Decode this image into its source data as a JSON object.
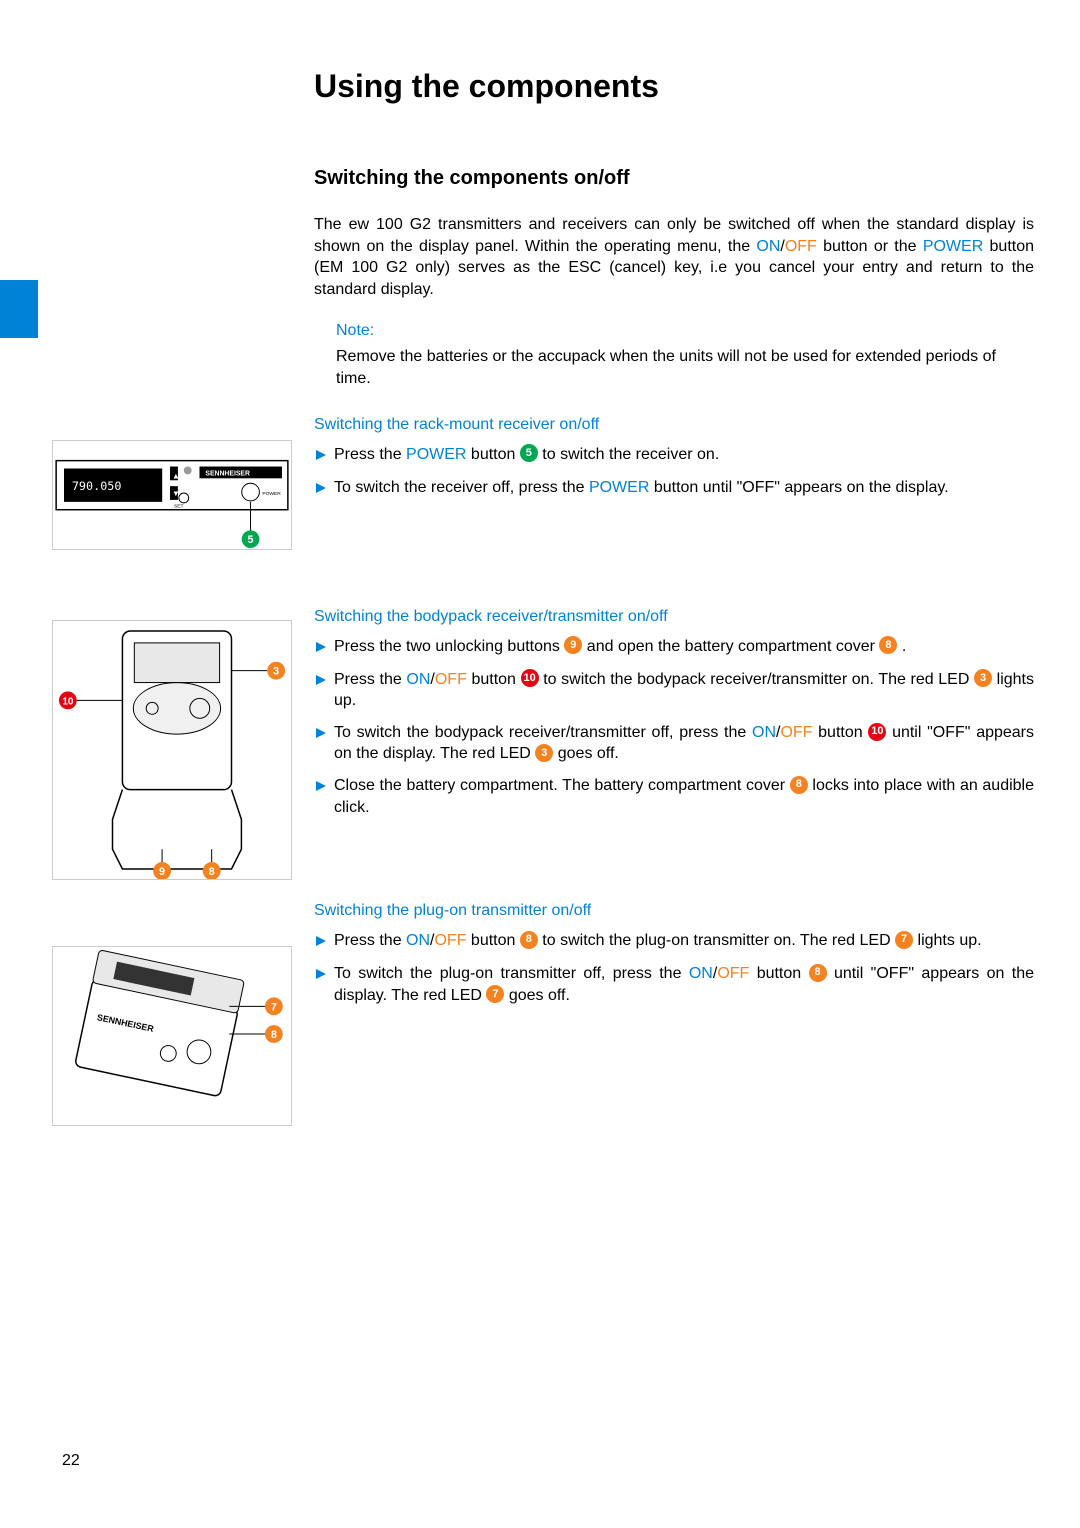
{
  "colors": {
    "accent_blue": "#0082d6",
    "orange": "#f58220",
    "callout_red": "#e30613",
    "callout_green": "#00a651",
    "callout_orange": "#f58220",
    "text": "#000000",
    "background": "#ffffff"
  },
  "page_number": "22",
  "heading": "Using the components",
  "subheading": "Switching the components on/off",
  "intro_para_parts": [
    "The ew 100 G2 transmitters and receivers can only be switched off when the standard display is shown on the display panel. Within the operating menu, the ",
    "ON",
    "/",
    "OFF",
    " button or the ",
    "POWER",
    " button (EM 100 G2 only) serves as the ESC (cancel) key, i.e you cancel your entry and return to the standard display."
  ],
  "note": {
    "label": "Note:",
    "text": "Remove the batteries or the accupack when the units will not be used for extended periods of time."
  },
  "section_rack": {
    "title": "Switching the rack-mount receiver on/off",
    "steps": [
      {
        "parts": [
          "Press the ",
          {
            "cls": "blue",
            "t": "POWER"
          },
          " button ",
          {
            "callout": "5",
            "c": "green"
          },
          " to switch the receiver on."
        ]
      },
      {
        "parts": [
          "To switch the receiver off, press the ",
          {
            "cls": "blue",
            "t": "POWER"
          },
          " button until \"OFF\" appears on the display."
        ]
      }
    ]
  },
  "section_bodypack": {
    "title": "Switching the bodypack receiver/transmitter on/off",
    "steps": [
      {
        "parts": [
          "Press the two unlocking buttons ",
          {
            "callout": "9",
            "c": "orange"
          },
          " and open the battery compartment cover ",
          {
            "callout": "8",
            "c": "orange"
          },
          " ."
        ]
      },
      {
        "parts": [
          "Press the ",
          {
            "cls": "blue",
            "t": "ON"
          },
          "/",
          {
            "cls": "orange",
            "t": "OFF"
          },
          " button ",
          {
            "callout": "10",
            "c": "red"
          },
          " to switch the bodypack receiver/transmitter on. The red LED ",
          {
            "callout": "3",
            "c": "orange"
          },
          " lights up."
        ]
      },
      {
        "parts": [
          "To switch the bodypack receiver/transmitter off, press the ",
          {
            "cls": "blue",
            "t": "ON"
          },
          "/",
          {
            "cls": "orange",
            "t": "OFF"
          },
          " button ",
          {
            "callout": "10",
            "c": "red"
          },
          " until \"OFF\" appears on the display. The red LED ",
          {
            "callout": "3",
            "c": "orange"
          },
          " goes off."
        ]
      },
      {
        "parts": [
          "Close the battery compartment. The battery compartment cover ",
          {
            "callout": "8",
            "c": "orange"
          },
          " locks into place with an audible click."
        ]
      }
    ]
  },
  "section_plugon": {
    "title": "Switching the plug-on transmitter on/off",
    "steps": [
      {
        "parts": [
          "Press the ",
          {
            "cls": "blue",
            "t": "ON"
          },
          "/",
          {
            "cls": "orange",
            "t": "OFF"
          },
          " button ",
          {
            "callout": "8",
            "c": "orange"
          },
          " to switch the plug-on transmitter on. The red LED ",
          {
            "callout": "7",
            "c": "orange"
          },
          " lights up."
        ]
      },
      {
        "parts": [
          "To switch the plug-on transmitter off, press the ",
          {
            "cls": "blue",
            "t": "ON"
          },
          "/",
          {
            "cls": "orange",
            "t": "OFF"
          },
          " button ",
          {
            "callout": "8",
            "c": "orange"
          },
          " until \"OFF\" appears on the display. The red LED ",
          {
            "callout": "7",
            "c": "orange"
          },
          " goes off."
        ]
      }
    ]
  },
  "figures": {
    "fig1_callouts": [
      {
        "n": "5",
        "c": "green"
      }
    ],
    "fig2_callouts": [
      {
        "n": "3",
        "c": "orange"
      },
      {
        "n": "10",
        "c": "red"
      },
      {
        "n": "9",
        "c": "orange"
      },
      {
        "n": "8",
        "c": "orange"
      }
    ],
    "fig3_callouts": [
      {
        "n": "7",
        "c": "orange"
      },
      {
        "n": "8",
        "c": "orange"
      }
    ]
  }
}
